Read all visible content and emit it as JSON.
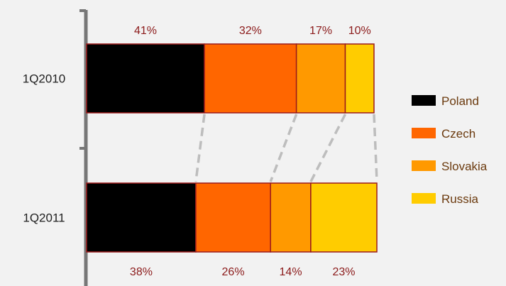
{
  "chart_data": {
    "type": "bar",
    "stacked": true,
    "normalized": true,
    "orientation": "horizontal",
    "categories": [
      "1Q2010",
      "1Q2011"
    ],
    "series": [
      {
        "name": "Poland",
        "color": "#000000",
        "values": [
          41,
          38
        ],
        "labels": [
          "41%",
          "38%"
        ]
      },
      {
        "name": "Czech",
        "color": "#ff6600",
        "values": [
          32,
          26
        ],
        "labels": [
          "32%",
          "26%"
        ]
      },
      {
        "name": "Slovakia",
        "color": "#ff9900",
        "values": [
          17,
          14
        ],
        "labels": [
          "17%",
          "14%"
        ]
      },
      {
        "name": "Russia",
        "color": "#ffcc00",
        "values": [
          10,
          23
        ],
        "labels": [
          "10%",
          "23%"
        ]
      }
    ],
    "xlim": [
      0,
      100
    ],
    "legend": "right",
    "grid": false,
    "connectors": true
  }
}
